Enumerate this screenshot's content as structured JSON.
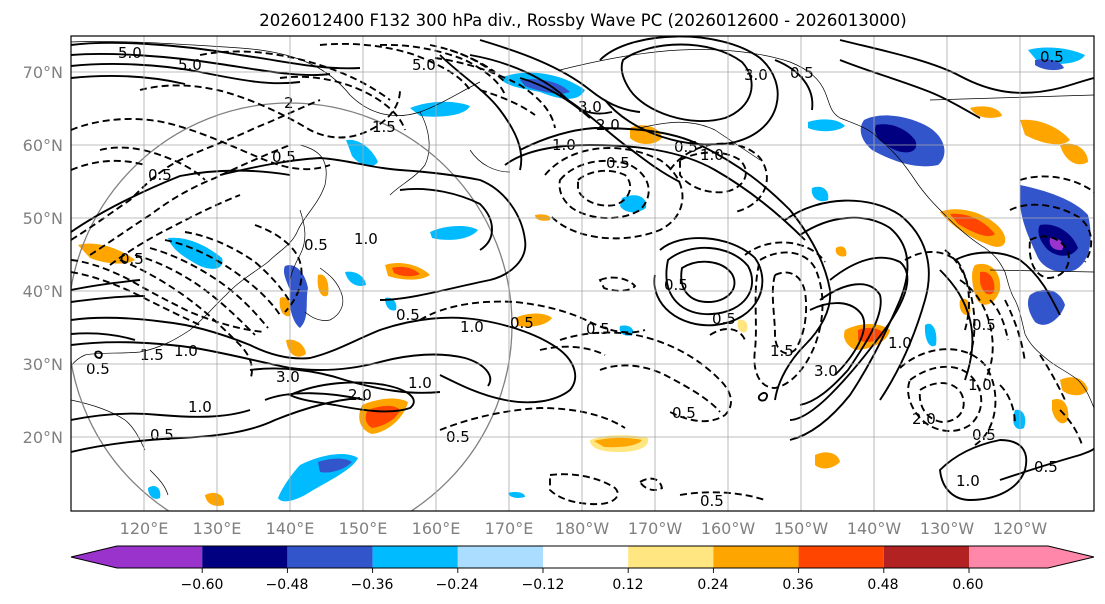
{
  "title": "2026012400 F132 300 hPa div., Rossby Wave PC (2026012600 - 2026013000)",
  "lat_labels": [
    "70°N",
    "60°N",
    "50°N",
    "40°N",
    "30°N",
    "20°N"
  ],
  "lon_labels": [
    "120°E",
    "130°E",
    "140°E",
    "150°E",
    "160°E",
    "170°E",
    "180°W",
    "170°W",
    "160°W",
    "150°W",
    "140°W",
    "130°W",
    "120°W"
  ],
  "colorbar": {
    "ticks": [
      "−0.60",
      "−0.48",
      "−0.36",
      "−0.24",
      "−0.12",
      "0.12",
      "0.24",
      "0.36",
      "0.48",
      "0.60"
    ],
    "colors": [
      "#9933cc",
      "#000080",
      "#3355cc",
      "#00bbff",
      "#aaddff",
      "#ffffff",
      "#ffe680",
      "#ffa500",
      "#ff4500",
      "#b22222",
      "#ff88aa"
    ]
  },
  "contour_labels": [
    "5.0",
    "5.0",
    "5.0",
    "2",
    "1.5",
    "3.0",
    "3.0",
    "0.5",
    "2.0",
    "1.0",
    "0.5",
    "0.5",
    "1.0",
    "0.5",
    "1.0",
    "1.0",
    "0.5",
    "0.5",
    "1.5",
    "0.5",
    "0.5",
    "1.0",
    "0.5",
    "0.5",
    "1.0",
    "3.0",
    "2.0",
    "1.0",
    "0.5",
    "0.5",
    "0.5",
    "0.5",
    "1.5",
    "3.0",
    "1.0",
    "0.5",
    "2.0",
    "0.5",
    "1.0",
    "0.5",
    "0.5",
    "1.0",
    "0.5",
    "0.5",
    "0.5"
  ]
}
